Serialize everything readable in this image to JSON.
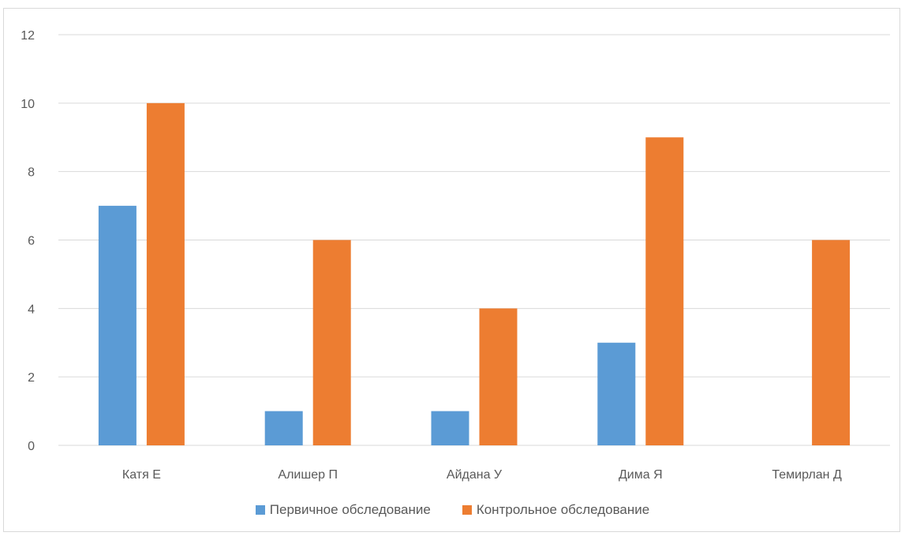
{
  "chart_data": {
    "type": "bar",
    "categories": [
      "Катя Е",
      "Алишер П",
      "Айдана У",
      "Дима Я",
      "Темирлан Д"
    ],
    "series": [
      {
        "name": "Первичное обследование",
        "values": [
          7,
          1,
          1,
          3,
          0
        ],
        "color": "#5B9BD5"
      },
      {
        "name": "Контрольное обследование",
        "values": [
          10,
          6,
          4,
          9,
          6
        ],
        "color": "#ED7D31"
      }
    ],
    "yticks": [
      0,
      2,
      4,
      6,
      8,
      10,
      12
    ],
    "ylim": [
      0,
      12
    ],
    "grid": true,
    "legend_position": "bottom"
  }
}
